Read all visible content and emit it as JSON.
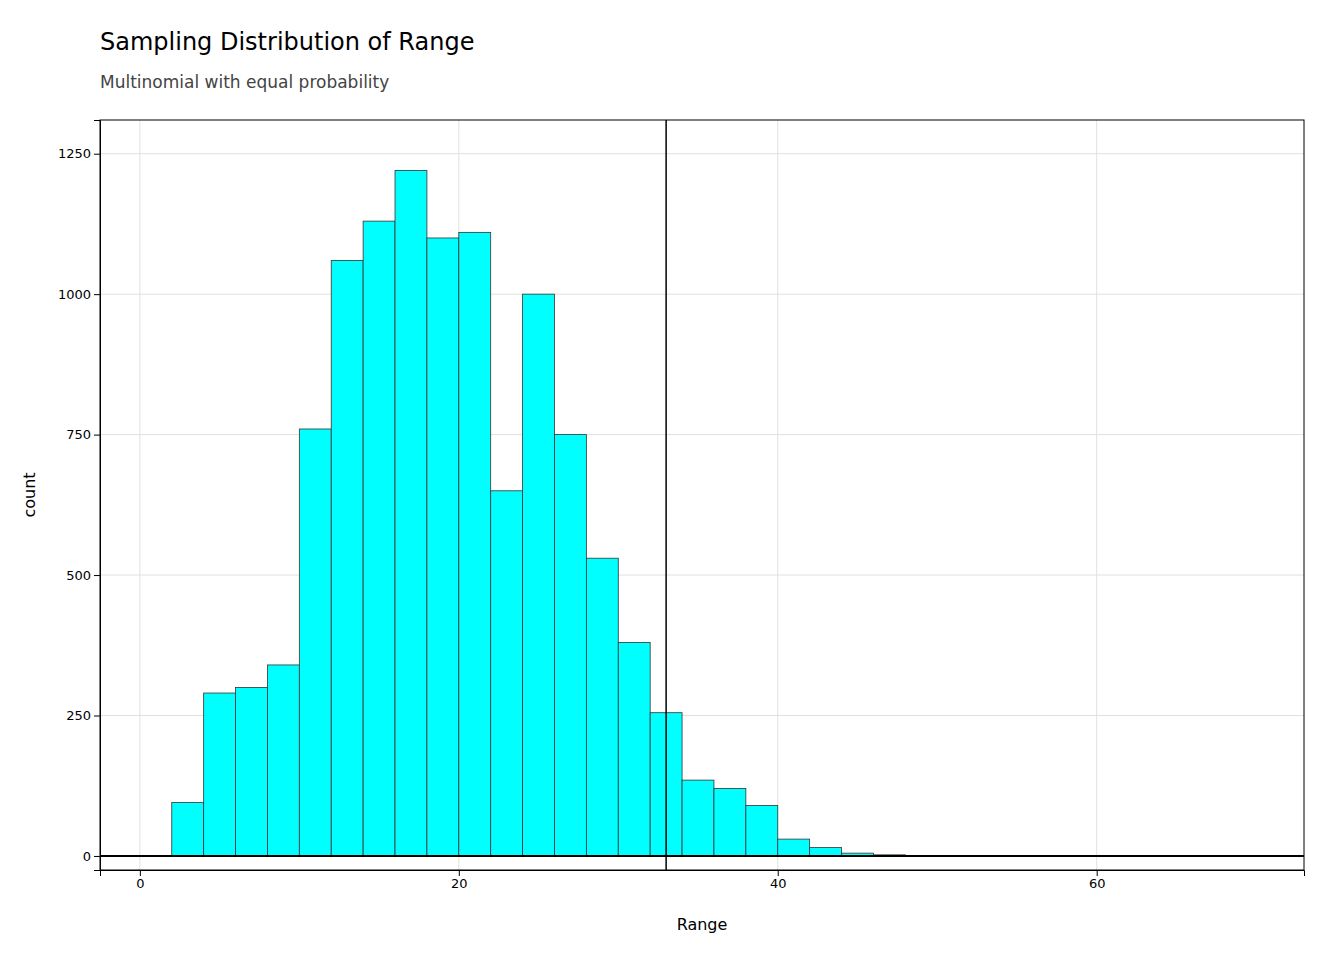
{
  "chart_data": {
    "type": "histogram",
    "title": "Sampling Distribution of Range",
    "subtitle": "Multinomial with equal probability",
    "xlabel": "Range",
    "ylabel": "count",
    "color": "#00FFFF",
    "bins": [
      2,
      4,
      6,
      8,
      10,
      12,
      14,
      16,
      18,
      20,
      22,
      24,
      26,
      28,
      30,
      32,
      34,
      36,
      38,
      40,
      42,
      44,
      46,
      48,
      50,
      52,
      54,
      56,
      58,
      60,
      62,
      64,
      66,
      68,
      70
    ],
    "counts": [
      95,
      290,
      300,
      340,
      760,
      1060,
      1130,
      1220,
      1100,
      1110,
      650,
      1000,
      750,
      530,
      380,
      255,
      135,
      120,
      90,
      30,
      15,
      5,
      2,
      0,
      0,
      0,
      0,
      0,
      0,
      0,
      0,
      0,
      0,
      0
    ],
    "vline": 33,
    "xlim": [
      -2.5,
      73
    ],
    "ylim": [
      -25,
      1310
    ],
    "xticks": [
      0,
      20,
      40,
      60
    ],
    "yticks": [
      0,
      250,
      500,
      750,
      1000,
      1250
    ],
    "grid": true
  }
}
